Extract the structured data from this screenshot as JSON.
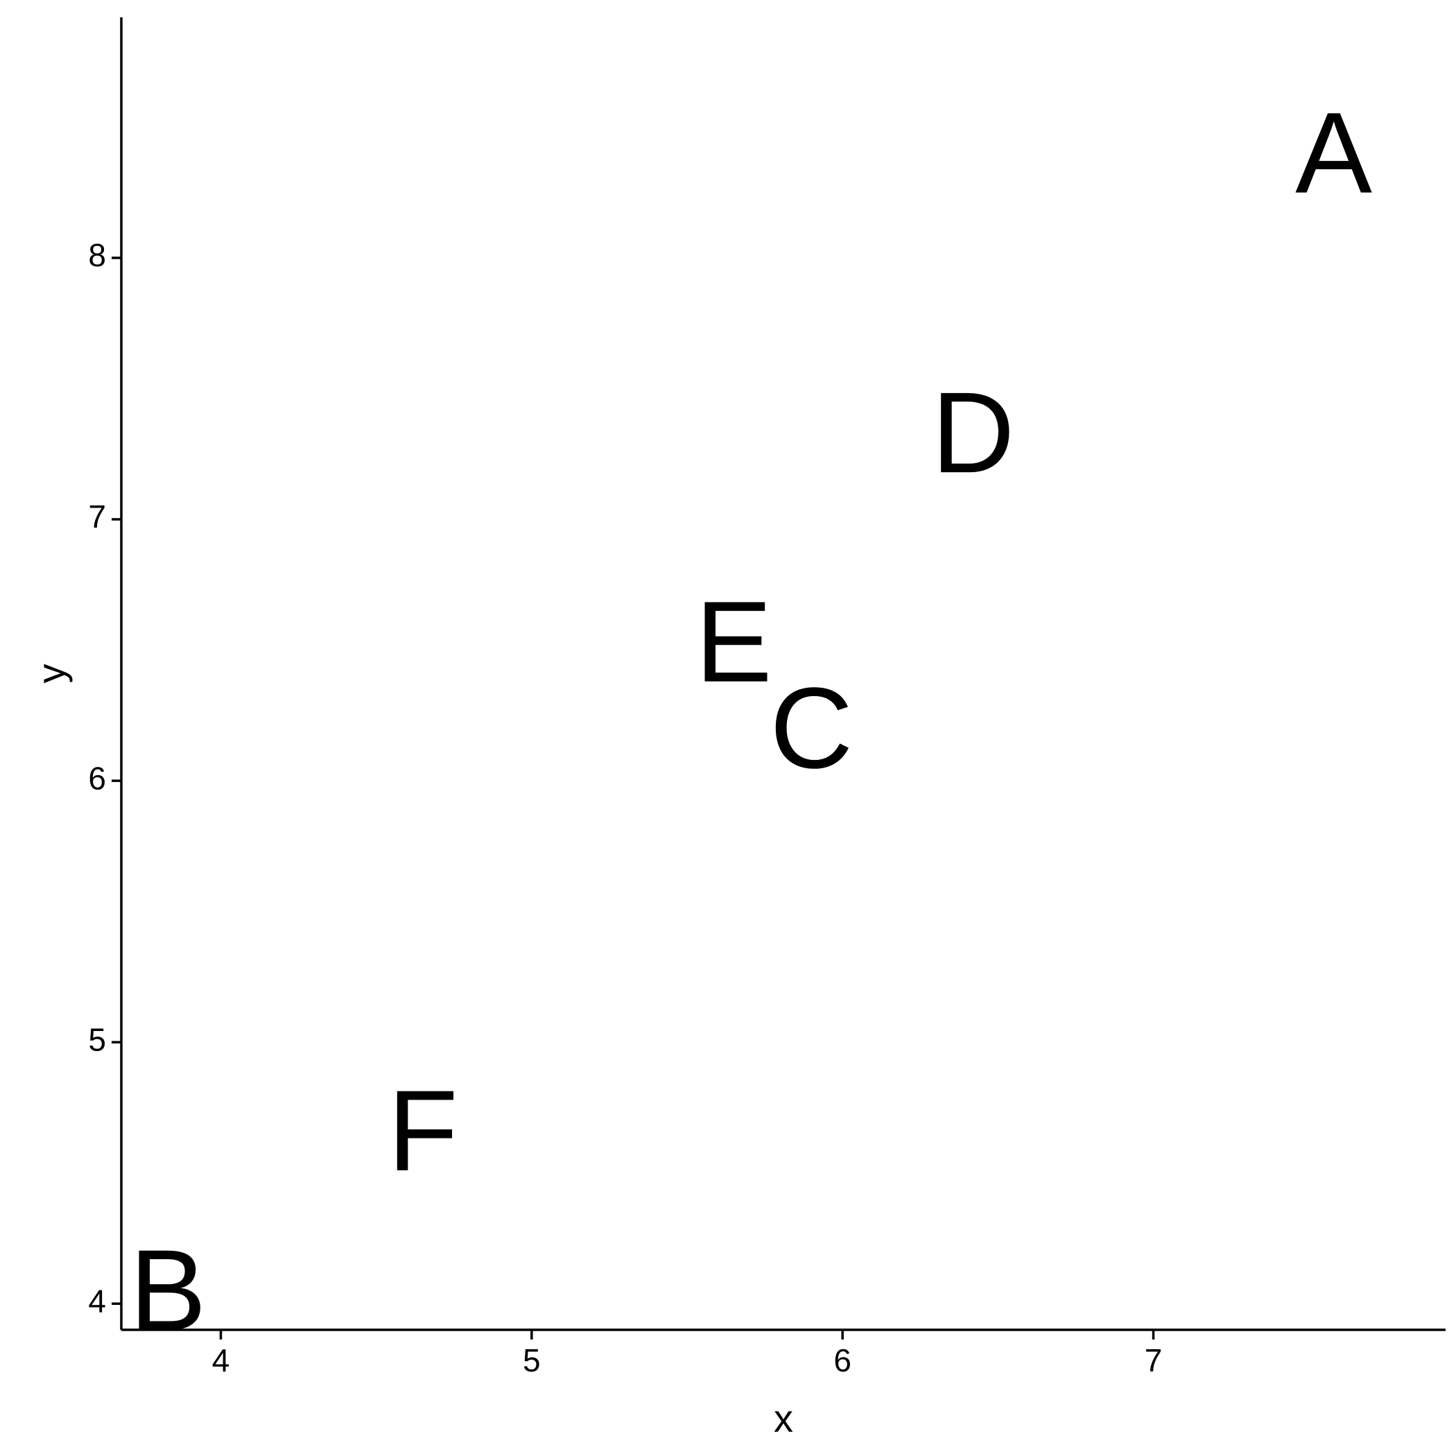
{
  "chart_data": {
    "type": "scatter",
    "marker": "text-label",
    "xlabel": "x",
    "ylabel": "y",
    "xlim": [
      3.68,
      7.94
    ],
    "ylim": [
      3.9,
      8.92
    ],
    "xticks": [
      4,
      5,
      6,
      7
    ],
    "yticks": [
      4,
      5,
      6,
      7,
      8
    ],
    "grid": false,
    "legend": "none",
    "points": [
      {
        "label": "A",
        "x": 7.58,
        "y": 8.4
      },
      {
        "label": "B",
        "x": 3.83,
        "y": 4.05
      },
      {
        "label": "C",
        "x": 5.9,
        "y": 6.2
      },
      {
        "label": "D",
        "x": 6.42,
        "y": 7.33
      },
      {
        "label": "E",
        "x": 5.65,
        "y": 6.53
      },
      {
        "label": "F",
        "x": 4.65,
        "y": 4.66
      }
    ]
  }
}
